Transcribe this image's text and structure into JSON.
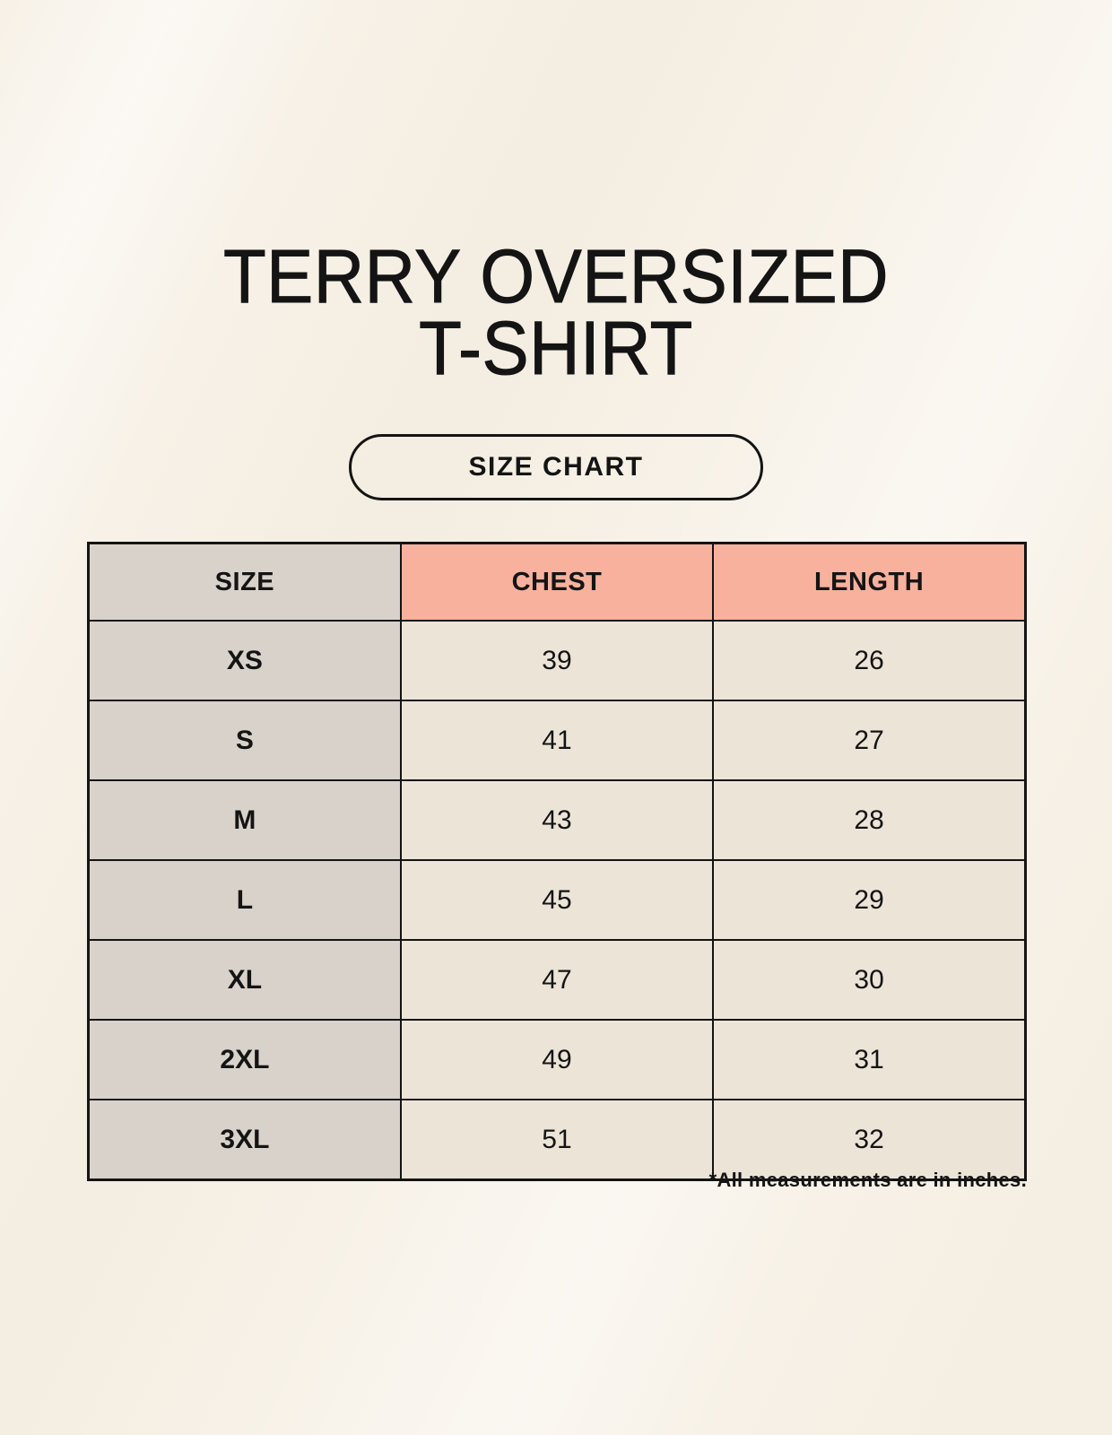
{
  "title": {
    "line1": "TERRY OVERSIZED",
    "line2": "T-SHIRT"
  },
  "button": {
    "label": "SIZE CHART"
  },
  "chart_data": {
    "type": "table",
    "title": "TERRY OVERSIZED T-SHIRT",
    "subtitle": "SIZE CHART",
    "columns": [
      "SIZE",
      "CHEST",
      "LENGTH"
    ],
    "rows": [
      {
        "size": "XS",
        "chest": "39",
        "length": "26"
      },
      {
        "size": "S",
        "chest": "41",
        "length": "27"
      },
      {
        "size": "M",
        "chest": "43",
        "length": "28"
      },
      {
        "size": "L",
        "chest": "45",
        "length": "29"
      },
      {
        "size": "XL",
        "chest": "47",
        "length": "30"
      },
      {
        "size": "2XL",
        "chest": "49",
        "length": "31"
      },
      {
        "size": "3XL",
        "chest": "51",
        "length": "32"
      }
    ],
    "footnote": "*All measurements are in inches.",
    "units": "inches"
  },
  "colors": {
    "background": "#f7f1e7",
    "cell_gray": "#d9d2cb",
    "cell_salmon": "#f7b19d",
    "cell_cream": "#ece4d7",
    "border": "#141414",
    "text": "#141414"
  }
}
